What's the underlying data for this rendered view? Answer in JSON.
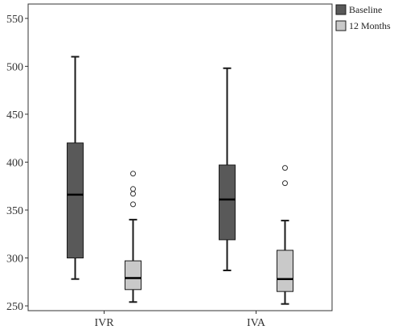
{
  "chart_data": {
    "type": "boxplot",
    "categories": [
      "IVR",
      "IVA"
    ],
    "ylim": [
      245,
      565
    ],
    "yticks": [
      250,
      300,
      350,
      400,
      450,
      500,
      550
    ],
    "grid": false,
    "legend_position": "top-right outside",
    "series": [
      {
        "name": "Baseline",
        "color": "#595959",
        "boxes": [
          {
            "category": "IVR",
            "min": 278,
            "q1": 300,
            "median": 366,
            "q3": 420,
            "max": 510,
            "outliers": []
          },
          {
            "category": "IVA",
            "min": 287,
            "q1": 319,
            "median": 361,
            "q3": 397,
            "max": 498,
            "outliers": []
          }
        ]
      },
      {
        "name": "12 Months",
        "color": "#c9c9c9",
        "boxes": [
          {
            "category": "IVR",
            "min": 254,
            "q1": 267,
            "median": 279,
            "q3": 297,
            "max": 340,
            "outliers": [
              356,
              367,
              372,
              388
            ]
          },
          {
            "category": "IVA",
            "min": 252,
            "q1": 265,
            "median": 278,
            "q3": 308,
            "max": 339,
            "outliers": [
              378,
              394
            ]
          }
        ]
      }
    ]
  }
}
